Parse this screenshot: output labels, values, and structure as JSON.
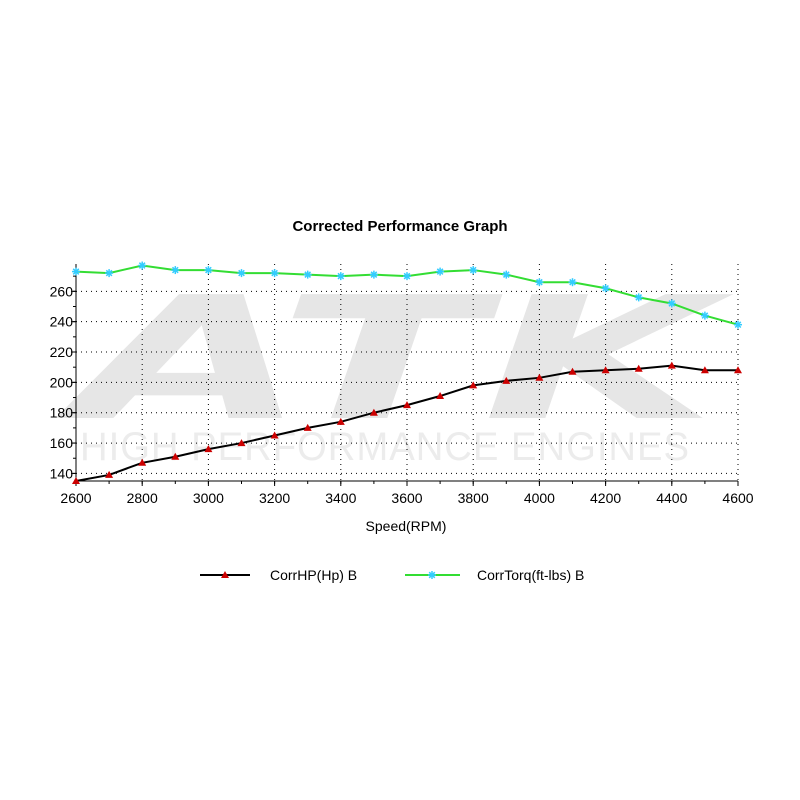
{
  "watermark": {
    "logo": "ATK",
    "tagline": "HIGH PERFORMANCE ENGINES"
  },
  "colors": {
    "hp_line": "#000000",
    "hp_marker": "#cc0000",
    "torque_line": "#33dd33",
    "torque_marker": "#33ccff",
    "grid": "#000000"
  },
  "chart_data": {
    "type": "line",
    "title": "Corrected Performance Graph",
    "xlabel": "Speed(RPM)",
    "ylabel": "",
    "xlim": [
      2600,
      4600
    ],
    "ylim": [
      135,
      278
    ],
    "grid": true,
    "legend_placement": "bottom",
    "x_ticks": [
      2600,
      2800,
      3000,
      3200,
      3400,
      3600,
      3800,
      4000,
      4200,
      4400,
      4600
    ],
    "y_ticks": [
      140,
      160,
      180,
      200,
      220,
      240,
      260
    ],
    "x": [
      2600,
      2700,
      2800,
      2900,
      3000,
      3100,
      3200,
      3300,
      3400,
      3500,
      3600,
      3700,
      3800,
      3900,
      4000,
      4100,
      4200,
      4300,
      4400,
      4500,
      4600
    ],
    "series": [
      {
        "name": "CorrHP(Hp) B",
        "marker": "triangle",
        "values": [
          135,
          139,
          147,
          151,
          156,
          160,
          165,
          170,
          174,
          180,
          185,
          191,
          198,
          201,
          203,
          207,
          208,
          209,
          211,
          208,
          208
        ]
      },
      {
        "name": "CorrTorq(ft-lbs) B",
        "marker": "star",
        "values": [
          273,
          272,
          277,
          274,
          274,
          272,
          272,
          271,
          270,
          271,
          270,
          273,
          274,
          271,
          266,
          266,
          262,
          256,
          252,
          244,
          238
        ]
      }
    ]
  }
}
